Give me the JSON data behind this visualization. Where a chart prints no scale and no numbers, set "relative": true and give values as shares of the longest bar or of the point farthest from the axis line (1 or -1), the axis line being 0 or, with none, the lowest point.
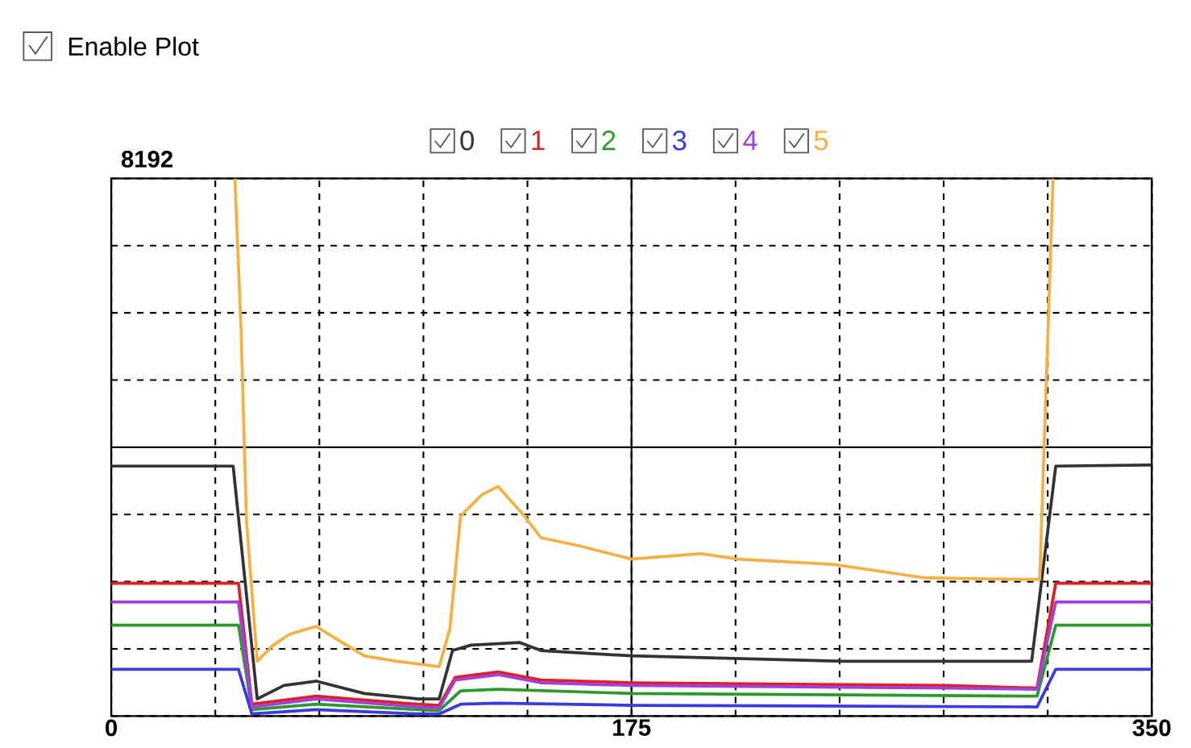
{
  "chart_data": {
    "type": "line",
    "relative": true,
    "grid": true,
    "legend": "top",
    "tick_labels": "x",
    "marker": "none",
    "line_style": "solid",
    "xlim": [
      0,
      350
    ],
    "xticks": [
      0,
      {
        "value": 35,
        "label": null
      },
      {
        "value": 70,
        "label": null
      },
      {
        "value": 105,
        "label": null
      },
      {
        "value": 140,
        "label": null
      },
      175,
      {
        "value": 210,
        "label": null
      },
      {
        "value": 245,
        "label": null
      },
      {
        "value": 280,
        "label": null
      },
      {
        "value": 315,
        "label": null
      },
      350
    ],
    "annotations": [
      "Enable Plot",
      "8192"
    ],
    "ref_lines": [
      {
        "axis": "x",
        "value": 175,
        "color": "#000000",
        "line_style": "solid"
      },
      {
        "axis": "y",
        "value": 0.5,
        "color": "#000000",
        "line_style": "solid"
      }
    ],
    "series": [
      {
        "name": "0",
        "color": "#333333",
        "x": [
          0,
          41,
          49.1,
          58.1,
          68.9,
          85.1,
          103.1,
          110.3,
          114.8,
          121,
          137.3,
          144.5,
          175,
          246.8,
          309.6,
          317.7,
          350
        ],
        "values": [
          0.465,
          0.465,
          0.032,
          0.057,
          0.065,
          0.042,
          0.032,
          0.032,
          0.122,
          0.132,
          0.137,
          0.122,
          0.112,
          0.102,
          0.102,
          0.465,
          0.467
        ]
      },
      {
        "name": "1",
        "color": "#e02020",
        "x": [
          0,
          42.8,
          47.3,
          68.9,
          103.1,
          110.3,
          115.7,
          130.1,
          144.5,
          175,
          280.9,
          311.4,
          317.7,
          350
        ],
        "values": [
          0.247,
          0.247,
          0.022,
          0.037,
          0.022,
          0.02,
          0.072,
          0.082,
          0.067,
          0.062,
          0.057,
          0.052,
          0.247,
          0.247
        ]
      },
      {
        "name": "2",
        "color": "#2a9a2a",
        "x": [
          0,
          42.8,
          47.3,
          68.9,
          103.1,
          110.3,
          117.5,
          130.1,
          175,
          311.4,
          317.7,
          350
        ],
        "values": [
          0.169,
          0.169,
          0.012,
          0.022,
          0.012,
          0.01,
          0.047,
          0.05,
          0.042,
          0.037,
          0.169,
          0.169
        ]
      },
      {
        "name": "3",
        "color": "#3a3ae0",
        "x": [
          0,
          42.8,
          47.3,
          68.9,
          103.1,
          110.3,
          117.5,
          130.1,
          175,
          311.4,
          317.7,
          350
        ],
        "values": [
          0.087,
          0.087,
          0.004,
          0.012,
          0.004,
          0.004,
          0.022,
          0.024,
          0.02,
          0.017,
          0.087,
          0.087
        ]
      },
      {
        "name": "4",
        "color": "#a040e0",
        "x": [
          0,
          42.8,
          47.3,
          68.9,
          103.1,
          110.3,
          115.7,
          130.1,
          144.5,
          175,
          280.9,
          311.4,
          317.7,
          350
        ],
        "values": [
          0.212,
          0.212,
          0.017,
          0.032,
          0.017,
          0.015,
          0.067,
          0.077,
          0.062,
          0.057,
          0.052,
          0.05,
          0.212,
          0.212
        ]
      },
      {
        "name": "5",
        "color": "#f5b041",
        "x": [
          41.6,
          43.7,
          45.5,
          49.1,
          54.5,
          59.9,
          68.9,
          76.1,
          85.1,
          95.9,
          110.3,
          113.9,
          117.5,
          124.7,
          130.1,
          139,
          144.5,
          157.1,
          175,
          198.3,
          210.9,
          243.2,
          273.7,
          309.6,
          312.3,
          316.8
        ],
        "values": [
          1.0,
          0.712,
          0.362,
          0.102,
          0.132,
          0.152,
          0.167,
          0.142,
          0.112,
          0.102,
          0.092,
          0.162,
          0.372,
          0.412,
          0.427,
          0.372,
          0.332,
          0.317,
          0.292,
          0.302,
          0.292,
          0.282,
          0.257,
          0.254,
          0.254,
          1.0
        ]
      }
    ]
  }
}
